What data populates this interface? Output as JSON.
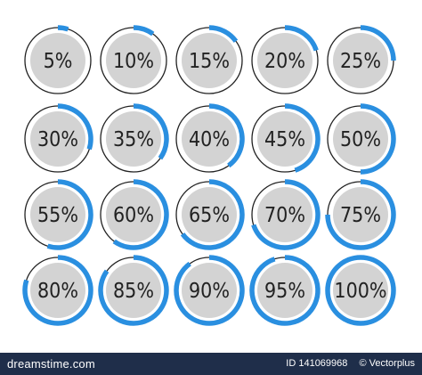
{
  "chart_data": {
    "type": "pie",
    "title": "",
    "ring_track_color": "#222222",
    "ring_fill_color": "#2a8fe0",
    "inner_disc_color": "#d3d3d3",
    "label_color": "#222222",
    "items": [
      {
        "label": "5%",
        "value": 5
      },
      {
        "label": "10%",
        "value": 10
      },
      {
        "label": "15%",
        "value": 15
      },
      {
        "label": "20%",
        "value": 20
      },
      {
        "label": "25%",
        "value": 25
      },
      {
        "label": "30%",
        "value": 30
      },
      {
        "label": "35%",
        "value": 35
      },
      {
        "label": "40%",
        "value": 40
      },
      {
        "label": "45%",
        "value": 45
      },
      {
        "label": "50%",
        "value": 50
      },
      {
        "label": "55%",
        "value": 55
      },
      {
        "label": "60%",
        "value": 60
      },
      {
        "label": "65%",
        "value": 65
      },
      {
        "label": "70%",
        "value": 70
      },
      {
        "label": "75%",
        "value": 75
      },
      {
        "label": "80%",
        "value": 80
      },
      {
        "label": "85%",
        "value": 85
      },
      {
        "label": "90%",
        "value": 90
      },
      {
        "label": "95%",
        "value": 95
      },
      {
        "label": "100%",
        "value": 100
      }
    ]
  },
  "watermark": {
    "logo_text": "dreamstime.com",
    "id_text": "ID 141069968",
    "credit_text": "© Vectorplus"
  }
}
